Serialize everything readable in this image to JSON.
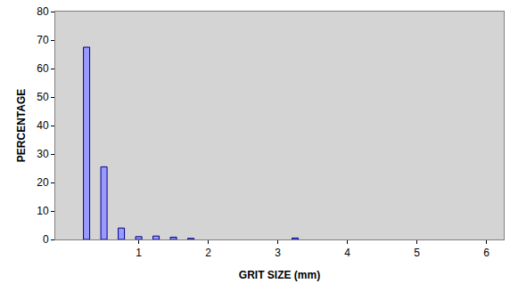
{
  "chart_data": {
    "type": "bar",
    "x_label": "GRIT SIZE (mm)",
    "y_label": "PERCENTAGE",
    "x": [
      0.25,
      0.5,
      0.75,
      1.0,
      1.25,
      1.5,
      1.75,
      3.25
    ],
    "values": [
      67.5,
      25.5,
      4,
      1,
      1.2,
      0.8,
      0.4,
      0.5
    ],
    "color": "#9999ff",
    "xlim": [
      -0.2,
      6.25
    ],
    "xticks": [
      1,
      2,
      3,
      4,
      5,
      6
    ],
    "ylim": [
      0,
      80
    ],
    "yticks": [
      0,
      10,
      20,
      30,
      40,
      50,
      60,
      70,
      80
    ],
    "grid": false
  }
}
